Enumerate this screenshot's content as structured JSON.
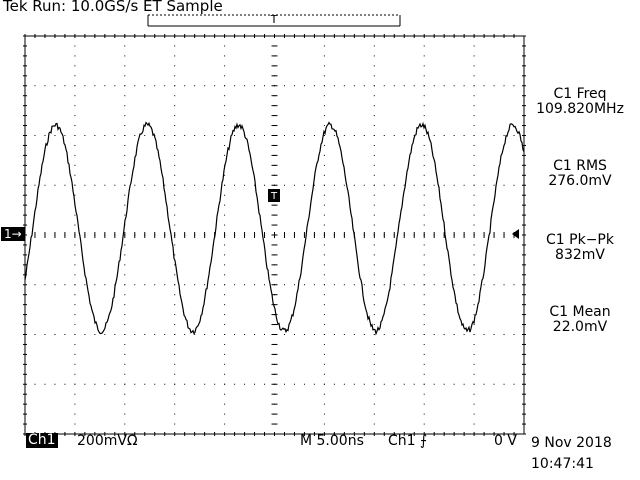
{
  "header": {
    "title": "Tek Run: 10.0GS/s ET Sample"
  },
  "measurements": [
    {
      "name": "C1 Freq",
      "value": "109.820MHz"
    },
    {
      "name": "C1 RMS",
      "value": "276.0mV"
    },
    {
      "name": "C1 Pk−Pk",
      "value": "832mV"
    },
    {
      "name": "C1 Mean",
      "value": "22.0mV"
    }
  ],
  "footer": {
    "channel_badge": "Ch1",
    "volts_per_div": "200mVΩ",
    "timebase": "M 5.00ns",
    "trigger_source": "Ch1",
    "trigger_level": "0 V",
    "date": "9 Nov 2018",
    "time": "10:47:41"
  },
  "markers": {
    "channel_marker": "1→",
    "trigger_marker": "T"
  },
  "colors": {
    "background": "#ffffff",
    "trace": "#000000",
    "grid": "#000000"
  },
  "waveform": {
    "frequency_label": "109.820MHz",
    "peak_to_peak_label": "832mV"
  }
}
